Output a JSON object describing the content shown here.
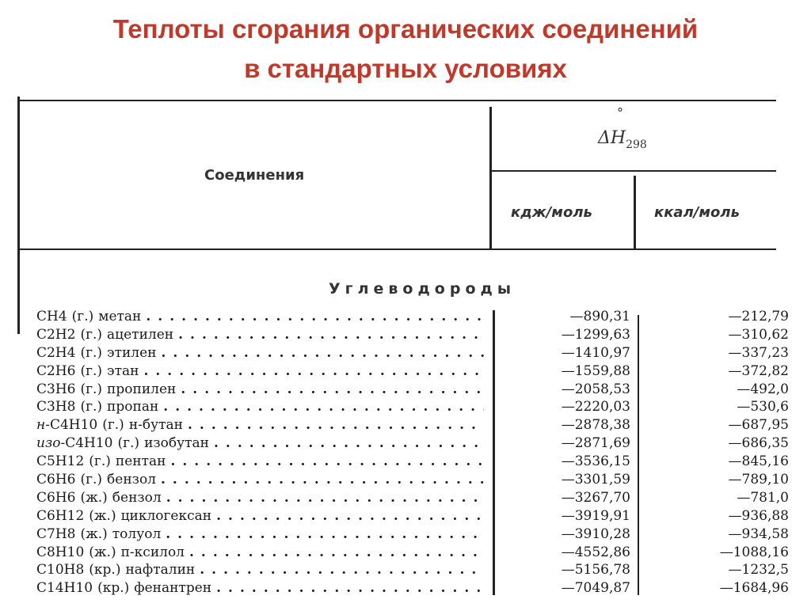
{
  "title_line1": "Теплоты сгорания органических соединений",
  "title_line2": "в стандартных условиях",
  "table": {
    "col_compound": "Соединения",
    "col_enthalpy_symbol": "ΔH",
    "col_enthalpy_sup": "°",
    "col_enthalpy_sub": "298",
    "col_kj": "кдж/моль",
    "col_kcal": "ккал/моль",
    "section": "Углеводороды",
    "rows": [
      {
        "prefix": "",
        "formula": "CH4",
        "state": "(г.)",
        "name": "метан",
        "kj": "—890,31",
        "kcal": "—212,79"
      },
      {
        "prefix": "",
        "formula": "C2H2",
        "state": "(г.)",
        "name": "ацетилен",
        "kj": "—1299,63",
        "kcal": "—310,62"
      },
      {
        "prefix": "",
        "formula": "C2H4",
        "state": "(г.)",
        "name": "этилен",
        "kj": "—1410,97",
        "kcal": "—337,23"
      },
      {
        "prefix": "",
        "formula": "C2H6",
        "state": "(г.)",
        "name": "этан",
        "kj": "—1559,88",
        "kcal": "—372,82"
      },
      {
        "prefix": "",
        "formula": "C3H6",
        "state": "(г.)",
        "name": "пропилен",
        "kj": "—2058,53",
        "kcal": "—492,0"
      },
      {
        "prefix": "",
        "formula": "C3H8",
        "state": "(г.)",
        "name": "пропан",
        "kj": "—2220,03",
        "kcal": "—530,6"
      },
      {
        "prefix": "н-",
        "formula": "C4H10",
        "state": "(г.)",
        "name": "н-бутан",
        "kj": "—2878,38",
        "kcal": "—687,95"
      },
      {
        "prefix": "изо-",
        "formula": "C4H10",
        "state": "(г.)",
        "name": "изобутан",
        "kj": "—2871,69",
        "kcal": "—686,35"
      },
      {
        "prefix": "",
        "formula": "C5H12",
        "state": "(г.)",
        "name": "пентан",
        "kj": "—3536,15",
        "kcal": "—845,16"
      },
      {
        "prefix": "",
        "formula": "C6H6",
        "state": "(г.)",
        "name": "бензол",
        "kj": "—3301,59",
        "kcal": "—789,10"
      },
      {
        "prefix": "",
        "formula": "C6H6",
        "state": "(ж.)",
        "name": "бензол",
        "kj": "—3267,70",
        "kcal": "—781,0"
      },
      {
        "prefix": "",
        "formula": "C6H12",
        "state": "(ж.)",
        "name": "циклогексан",
        "kj": "—3919,91",
        "kcal": "—936,88"
      },
      {
        "prefix": "",
        "formula": "C7H8",
        "state": "(ж.)",
        "name": "толуол",
        "kj": "—3910,28",
        "kcal": "—934,58"
      },
      {
        "prefix": "",
        "formula": "C8H10",
        "state": "(ж.)",
        "name": "п-ксилол",
        "kj": "—4552,86",
        "kcal": "—1088,16"
      },
      {
        "prefix": "",
        "formula": "C10H8",
        "state": "(кр.)",
        "name": "нафталин",
        "kj": "—5156,78",
        "kcal": "—1232,5"
      },
      {
        "prefix": "",
        "formula": "C14H10",
        "state": "(кр.)",
        "name": "фенантрен",
        "kj": "—7049,87",
        "kcal": "—1684,96"
      }
    ]
  },
  "colors": {
    "title": "#c0392b",
    "text": "#1a1a1a"
  }
}
